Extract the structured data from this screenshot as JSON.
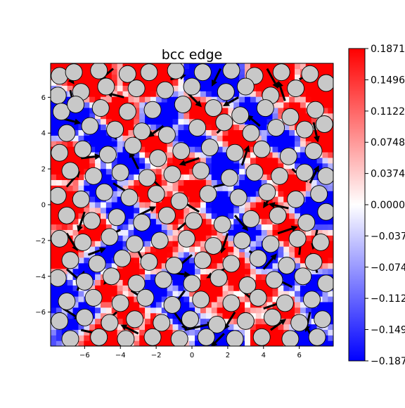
{
  "chart_data": {
    "type": "heatmap",
    "title": "bcc edge",
    "xlabel": "",
    "ylabel": "",
    "xlim": [
      -7.9,
      7.9
    ],
    "ylim": [
      -7.9,
      7.9
    ],
    "xticks": [
      -6,
      -4,
      -2,
      0,
      2,
      4,
      6
    ],
    "yticks": [
      -6,
      -4,
      -2,
      0,
      2,
      4,
      6
    ],
    "xtick_labels": [
      "−6",
      "−4",
      "−2",
      "0",
      "2",
      "4",
      "6"
    ],
    "ytick_labels": [
      "−6",
      "−4",
      "−2",
      "0",
      "2",
      "4",
      "6"
    ],
    "grid": false,
    "colormap": "bwr",
    "colors": {
      "low": "#0000ff",
      "mid": "#ffffff",
      "high": "#ff0000",
      "atom_fill": "#c8c8c8",
      "atom_edge": "#000000",
      "arrow": "#000000"
    },
    "colorbar": {
      "min": -0.1871,
      "max": 0.1871,
      "ticks": [
        0.1871,
        0.1496,
        0.1122,
        0.0748,
        0.0374,
        0.0,
        -0.0374,
        -0.0748,
        -0.1122,
        -0.1496,
        -0.1871
      ],
      "tick_labels": [
        "0.1871",
        "0.1496",
        "0.1122",
        "0.0748",
        "0.0374",
        "0.0000",
        "−0.0374",
        "−0.0748",
        "−0.1122",
        "−0.1496",
        "−0.1871"
      ]
    },
    "atoms": [
      [
        -7.4,
        7.2
      ],
      [
        -6.6,
        7.4
      ],
      [
        -5.2,
        7.5
      ],
      [
        -3.6,
        7.3
      ],
      [
        -2.4,
        7.4
      ],
      [
        -0.9,
        7.5
      ],
      [
        0.6,
        7.4
      ],
      [
        2.2,
        7.5
      ],
      [
        3.5,
        7.2
      ],
      [
        5.0,
        7.4
      ],
      [
        6.6,
        7.3
      ],
      [
        7.5,
        6.8
      ],
      [
        -7.5,
        6.1
      ],
      [
        -6.2,
        6.3
      ],
      [
        -4.8,
        6.6
      ],
      [
        -3.1,
        6.5
      ],
      [
        -1.5,
        6.4
      ],
      [
        0.0,
        6.6
      ],
      [
        1.9,
        6.3
      ],
      [
        3.0,
        6.6
      ],
      [
        4.4,
        6.1
      ],
      [
        5.8,
        6.5
      ],
      [
        -7.3,
        5.2
      ],
      [
        -6.5,
        5.6
      ],
      [
        -5.1,
        5.4
      ],
      [
        -3.6,
        5.2
      ],
      [
        -2.2,
        5.3
      ],
      [
        -0.5,
        5.6
      ],
      [
        1.2,
        5.4
      ],
      [
        2.7,
        5.0
      ],
      [
        4.1,
        5.4
      ],
      [
        5.5,
        4.9
      ],
      [
        6.9,
        5.3
      ],
      [
        -7.0,
        4.0
      ],
      [
        -5.7,
        4.4
      ],
      [
        -4.3,
        4.2
      ],
      [
        -2.8,
        4.1
      ],
      [
        -1.4,
        3.9
      ],
      [
        0.3,
        4.3
      ],
      [
        1.8,
        4.6
      ],
      [
        3.3,
        4.0
      ],
      [
        4.7,
        4.3
      ],
      [
        6.3,
        4.2
      ],
      [
        7.4,
        4.5
      ],
      [
        -7.4,
        2.9
      ],
      [
        -6.1,
        3.1
      ],
      [
        -4.7,
        2.8
      ],
      [
        -3.3,
        3.3
      ],
      [
        -1.9,
        2.6
      ],
      [
        -0.6,
        3.0
      ],
      [
        1.0,
        3.2
      ],
      [
        2.4,
        2.9
      ],
      [
        3.9,
        3.1
      ],
      [
        5.4,
        2.7
      ],
      [
        6.8,
        3.0
      ],
      [
        -6.8,
        1.9
      ],
      [
        -5.5,
        1.6
      ],
      [
        -4.0,
        1.8
      ],
      [
        -2.5,
        1.5
      ],
      [
        -1.1,
        1.7
      ],
      [
        0.5,
        1.9
      ],
      [
        2.1,
        1.5
      ],
      [
        3.5,
        1.8
      ],
      [
        4.9,
        1.6
      ],
      [
        6.3,
        1.8
      ],
      [
        7.5,
        1.6
      ],
      [
        -7.5,
        0.5
      ],
      [
        -6.2,
        0.3
      ],
      [
        -4.9,
        0.7
      ],
      [
        -3.5,
        0.4
      ],
      [
        -2.0,
        0.6
      ],
      [
        -0.7,
        0.2
      ],
      [
        0.9,
        0.6
      ],
      [
        2.6,
        0.4
      ],
      [
        4.2,
        0.7
      ],
      [
        5.8,
        0.3
      ],
      [
        7.1,
        0.6
      ],
      [
        -7.0,
        -0.6
      ],
      [
        -5.6,
        -0.9
      ],
      [
        -4.2,
        -0.7
      ],
      [
        -2.8,
        -1.0
      ],
      [
        -1.4,
        -0.6
      ],
      [
        0.1,
        -0.9
      ],
      [
        1.7,
        -1.1
      ],
      [
        3.3,
        -0.8
      ],
      [
        4.8,
        -0.6
      ],
      [
        6.4,
        -1.0
      ],
      [
        7.5,
        -0.4
      ],
      [
        -7.4,
        -1.9
      ],
      [
        -6.1,
        -2.1
      ],
      [
        -4.6,
        -1.8
      ],
      [
        -3.2,
        -2.2
      ],
      [
        -1.8,
        -2.0
      ],
      [
        -0.3,
        -1.9
      ],
      [
        1.2,
        -2.3
      ],
      [
        2.8,
        -2.0
      ],
      [
        4.4,
        -2.2
      ],
      [
        5.9,
        -1.9
      ],
      [
        7.2,
        -2.1
      ],
      [
        -6.8,
        -3.1
      ],
      [
        -5.3,
        -3.3
      ],
      [
        -3.9,
        -3.0
      ],
      [
        -2.4,
        -3.2
      ],
      [
        -1.0,
        -3.4
      ],
      [
        0.6,
        -3.1
      ],
      [
        2.2,
        -3.3
      ],
      [
        3.7,
        -3.0
      ],
      [
        5.3,
        -3.4
      ],
      [
        6.8,
        -3.2
      ],
      [
        -7.5,
        -4.1
      ],
      [
        -6.0,
        -4.3
      ],
      [
        -4.5,
        -4.0
      ],
      [
        -3.1,
        -4.4
      ],
      [
        -1.6,
        -4.2
      ],
      [
        0.0,
        -4.4
      ],
      [
        1.5,
        -4.1
      ],
      [
        3.1,
        -4.5
      ],
      [
        4.6,
        -4.2
      ],
      [
        6.2,
        -4.0
      ],
      [
        7.5,
        -4.4
      ],
      [
        -7.0,
        -5.4
      ],
      [
        -5.5,
        -5.2
      ],
      [
        -4.0,
        -5.5
      ],
      [
        -2.6,
        -5.2
      ],
      [
        -1.1,
        -5.6
      ],
      [
        0.5,
        -5.3
      ],
      [
        2.2,
        -5.5
      ],
      [
        3.7,
        -5.2
      ],
      [
        5.2,
        -5.5
      ],
      [
        6.7,
        -5.3
      ],
      [
        -7.4,
        -6.5
      ],
      [
        -6.0,
        -6.3
      ],
      [
        -4.6,
        -6.6
      ],
      [
        -3.2,
        -6.4
      ],
      [
        -1.7,
        -6.6
      ],
      [
        -0.1,
        -6.4
      ],
      [
        1.4,
        -6.7
      ],
      [
        3.0,
        -6.5
      ],
      [
        4.5,
        -6.3
      ],
      [
        6.0,
        -6.6
      ],
      [
        7.3,
        -6.4
      ],
      [
        -6.8,
        -7.5
      ],
      [
        -5.2,
        -7.4
      ],
      [
        -3.7,
        -7.5
      ],
      [
        -2.2,
        -7.4
      ],
      [
        -0.7,
        -7.5
      ],
      [
        0.8,
        -7.4
      ],
      [
        2.4,
        -7.5
      ],
      [
        3.9,
        -7.4
      ],
      [
        5.5,
        -7.5
      ],
      [
        7.0,
        -7.4
      ]
    ],
    "field_sources": [
      [
        -5.6,
        6.8,
        1
      ],
      [
        -2.6,
        6.9,
        1
      ],
      [
        1.4,
        6.8,
        -1
      ],
      [
        4.6,
        6.8,
        1
      ],
      [
        6.9,
        6.2,
        1
      ],
      [
        -6.6,
        5.0,
        -1
      ],
      [
        -4.0,
        5.0,
        1
      ],
      [
        -1.8,
        4.9,
        -1
      ],
      [
        0.8,
        5.0,
        1
      ],
      [
        3.6,
        4.8,
        -1
      ],
      [
        6.0,
        5.0,
        1
      ],
      [
        -5.2,
        3.6,
        -1
      ],
      [
        -2.2,
        3.4,
        1
      ],
      [
        0.0,
        3.6,
        -1
      ],
      [
        2.8,
        3.6,
        1
      ],
      [
        5.0,
        3.6,
        -1
      ],
      [
        7.2,
        3.4,
        1
      ],
      [
        -6.4,
        2.4,
        1
      ],
      [
        -3.4,
        2.2,
        -1
      ],
      [
        -0.4,
        2.4,
        1
      ],
      [
        1.8,
        2.2,
        -1
      ],
      [
        4.2,
        2.2,
        1
      ],
      [
        6.6,
        2.4,
        -1
      ],
      [
        -5.0,
        1.0,
        -1
      ],
      [
        -2.6,
        1.0,
        1
      ],
      [
        0.0,
        0.8,
        1
      ],
      [
        3.4,
        1.0,
        -1
      ],
      [
        5.6,
        1.1,
        1
      ],
      [
        -6.8,
        -0.2,
        1
      ],
      [
        -4.0,
        -0.3,
        -1
      ],
      [
        -1.2,
        -0.2,
        1
      ],
      [
        1.6,
        -0.2,
        -1
      ],
      [
        4.0,
        -0.2,
        1
      ],
      [
        6.6,
        -0.2,
        -1
      ],
      [
        -5.4,
        -1.4,
        1
      ],
      [
        -2.4,
        -1.5,
        -1
      ],
      [
        0.6,
        -1.4,
        1
      ],
      [
        3.0,
        -1.4,
        -1
      ],
      [
        5.4,
        -1.4,
        1
      ],
      [
        -7.0,
        -2.8,
        1
      ],
      [
        -4.6,
        -2.7,
        -1
      ],
      [
        -1.8,
        -2.8,
        1
      ],
      [
        1.4,
        -2.7,
        1
      ],
      [
        4.2,
        -2.8,
        -1
      ],
      [
        6.4,
        -2.6,
        1
      ],
      [
        -6.0,
        -3.8,
        -1
      ],
      [
        -3.6,
        -3.7,
        1
      ],
      [
        -0.8,
        -3.8,
        -1
      ],
      [
        2.4,
        -3.8,
        1
      ],
      [
        5.4,
        -3.8,
        -1
      ],
      [
        -7.0,
        -4.9,
        -1
      ],
      [
        -4.8,
        -4.8,
        1
      ],
      [
        -2.0,
        -4.8,
        -1
      ],
      [
        1.0,
        -4.9,
        1
      ],
      [
        4.0,
        -4.8,
        1
      ],
      [
        6.8,
        -4.8,
        -1
      ],
      [
        -6.0,
        -6.0,
        -1
      ],
      [
        -3.6,
        -6.0,
        1
      ],
      [
        -0.8,
        -6.0,
        -1
      ],
      [
        2.0,
        -6.0,
        1
      ],
      [
        5.0,
        -6.0,
        1
      ],
      [
        7.2,
        -5.8,
        -1
      ],
      [
        -5.0,
        -7.0,
        1
      ],
      [
        -1.8,
        -7.0,
        1
      ],
      [
        1.6,
        -7.0,
        -1
      ],
      [
        4.6,
        -7.0,
        1
      ],
      [
        6.4,
        -7.2,
        -1
      ]
    ],
    "vectors": [
      [
        -7.2,
        7.6,
        0.5,
        -0.7
      ],
      [
        -4.4,
        7.6,
        -0.6,
        -0.5
      ],
      [
        -1.2,
        7.0,
        0.7,
        0.2
      ],
      [
        1.6,
        7.6,
        -0.4,
        -0.8
      ],
      [
        4.2,
        7.6,
        0.5,
        -0.9
      ],
      [
        6.0,
        7.0,
        0.8,
        0.4
      ],
      [
        -6.8,
        6.4,
        0.2,
        -0.9
      ],
      [
        -3.8,
        6.0,
        -0.8,
        0.2
      ],
      [
        -0.2,
        6.2,
        0.6,
        -0.6
      ],
      [
        2.6,
        6.0,
        -0.7,
        -0.4
      ],
      [
        5.2,
        5.8,
        -0.3,
        0.9
      ],
      [
        -7.2,
        4.8,
        0.8,
        -0.2
      ],
      [
        -4.6,
        4.6,
        0.3,
        -0.8
      ],
      [
        -1.6,
        4.4,
        -0.7,
        -0.5
      ],
      [
        1.4,
        4.0,
        0.6,
        0.6
      ],
      [
        3.8,
        4.4,
        -0.6,
        0.5
      ],
      [
        6.8,
        4.6,
        0.2,
        -0.9
      ],
      [
        -6.2,
        2.6,
        0.9,
        0.1
      ],
      [
        -3.0,
        2.0,
        -0.4,
        0.8
      ],
      [
        0.4,
        2.6,
        -0.9,
        -0.3
      ],
      [
        2.8,
        2.2,
        0.3,
        0.9
      ],
      [
        5.6,
        2.0,
        0.7,
        -0.6
      ],
      [
        -7.0,
        1.0,
        0.6,
        0.7
      ],
      [
        -4.4,
        1.2,
        0.8,
        -0.5
      ],
      [
        -1.6,
        0.8,
        -0.6,
        0.6
      ],
      [
        1.2,
        1.0,
        0.9,
        0.2
      ],
      [
        4.6,
        0.8,
        -0.5,
        -0.8
      ],
      [
        6.6,
        1.2,
        0.4,
        0.8
      ],
      [
        -6.0,
        -0.4,
        -0.3,
        -0.9
      ],
      [
        -3.0,
        -0.6,
        0.8,
        0.4
      ],
      [
        0.4,
        -0.4,
        -0.8,
        0.5
      ],
      [
        2.4,
        -0.6,
        0.6,
        -0.7
      ],
      [
        5.4,
        -0.2,
        -0.9,
        0.2
      ],
      [
        -7.0,
        -1.6,
        0.5,
        -0.8
      ],
      [
        -4.0,
        -1.4,
        -0.8,
        -0.4
      ],
      [
        -0.8,
        -1.4,
        0.7,
        0.6
      ],
      [
        2.0,
        -1.6,
        -0.3,
        -0.9
      ],
      [
        4.8,
        -1.6,
        0.9,
        0.3
      ],
      [
        7.0,
        -1.4,
        -0.2,
        -0.9
      ],
      [
        -5.8,
        -2.8,
        0.8,
        0.3
      ],
      [
        -3.0,
        -2.6,
        0.4,
        -0.8
      ],
      [
        0.0,
        -2.8,
        -0.7,
        -0.6
      ],
      [
        3.2,
        -2.6,
        0.8,
        -0.4
      ],
      [
        6.0,
        -2.8,
        0.1,
        0.9
      ],
      [
        -7.0,
        -3.6,
        0.7,
        -0.6
      ],
      [
        -4.2,
        -3.6,
        -0.6,
        -0.7
      ],
      [
        -1.2,
        -3.8,
        0.9,
        -0.1
      ],
      [
        1.8,
        -3.6,
        -0.8,
        -0.4
      ],
      [
        4.0,
        -3.6,
        0.6,
        0.7
      ],
      [
        7.0,
        -3.8,
        -0.3,
        0.9
      ],
      [
        -6.4,
        -4.8,
        0.3,
        0.9
      ],
      [
        -3.4,
        -4.8,
        0.8,
        -0.5
      ],
      [
        -0.4,
        -4.8,
        -0.6,
        -0.8
      ],
      [
        2.8,
        -4.8,
        0.7,
        -0.6
      ],
      [
        5.6,
        -4.6,
        -0.8,
        0.4
      ],
      [
        -7.2,
        -5.8,
        0.8,
        -0.5
      ],
      [
        -4.2,
        -6.0,
        -0.7,
        -0.6
      ],
      [
        -1.0,
        -6.0,
        0.6,
        -0.8
      ],
      [
        2.4,
        -6.0,
        -0.5,
        -0.8
      ],
      [
        4.0,
        -5.8,
        0.9,
        0.3
      ],
      [
        6.6,
        -6.0,
        -0.2,
        -0.9
      ],
      [
        -6.2,
        -7.0,
        0.9,
        -0.2
      ],
      [
        -3.0,
        -7.2,
        -0.8,
        0.4
      ],
      [
        -0.4,
        -7.0,
        1.3,
        0.3
      ],
      [
        1.8,
        -7.2,
        -0.6,
        -0.6
      ],
      [
        4.4,
        -7.0,
        0.7,
        0.5
      ],
      [
        6.6,
        -7.2,
        -0.4,
        0.8
      ]
    ]
  }
}
